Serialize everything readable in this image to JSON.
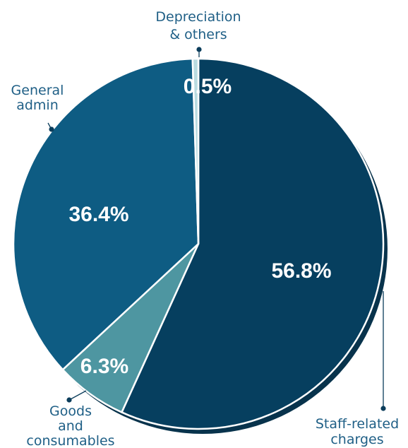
{
  "chart_data": {
    "type": "pie",
    "title": "",
    "slices": [
      {
        "label_lines": [
          "Staff-related",
          "charges"
        ],
        "value": 56.8,
        "value_label": "56.8%",
        "color": "#063f5f"
      },
      {
        "label_lines": [
          "Goods",
          "and",
          "consumables"
        ],
        "value": 6.3,
        "value_label": "6.3%",
        "color": "#4e96a1"
      },
      {
        "label_lines": [
          "General",
          "admin"
        ],
        "value": 36.4,
        "value_label": "36.4%",
        "color": "#0e5c83"
      },
      {
        "label_lines": [
          "Depreciation",
          "& others"
        ],
        "value": 0.5,
        "value_label": "0.5%",
        "color": "#b9dbe0"
      }
    ],
    "start_angle": "12 o'clock",
    "direction": "clockwise",
    "legend": "none",
    "label_color": "#1f5f86",
    "leader_color": "#0b3d5b"
  }
}
